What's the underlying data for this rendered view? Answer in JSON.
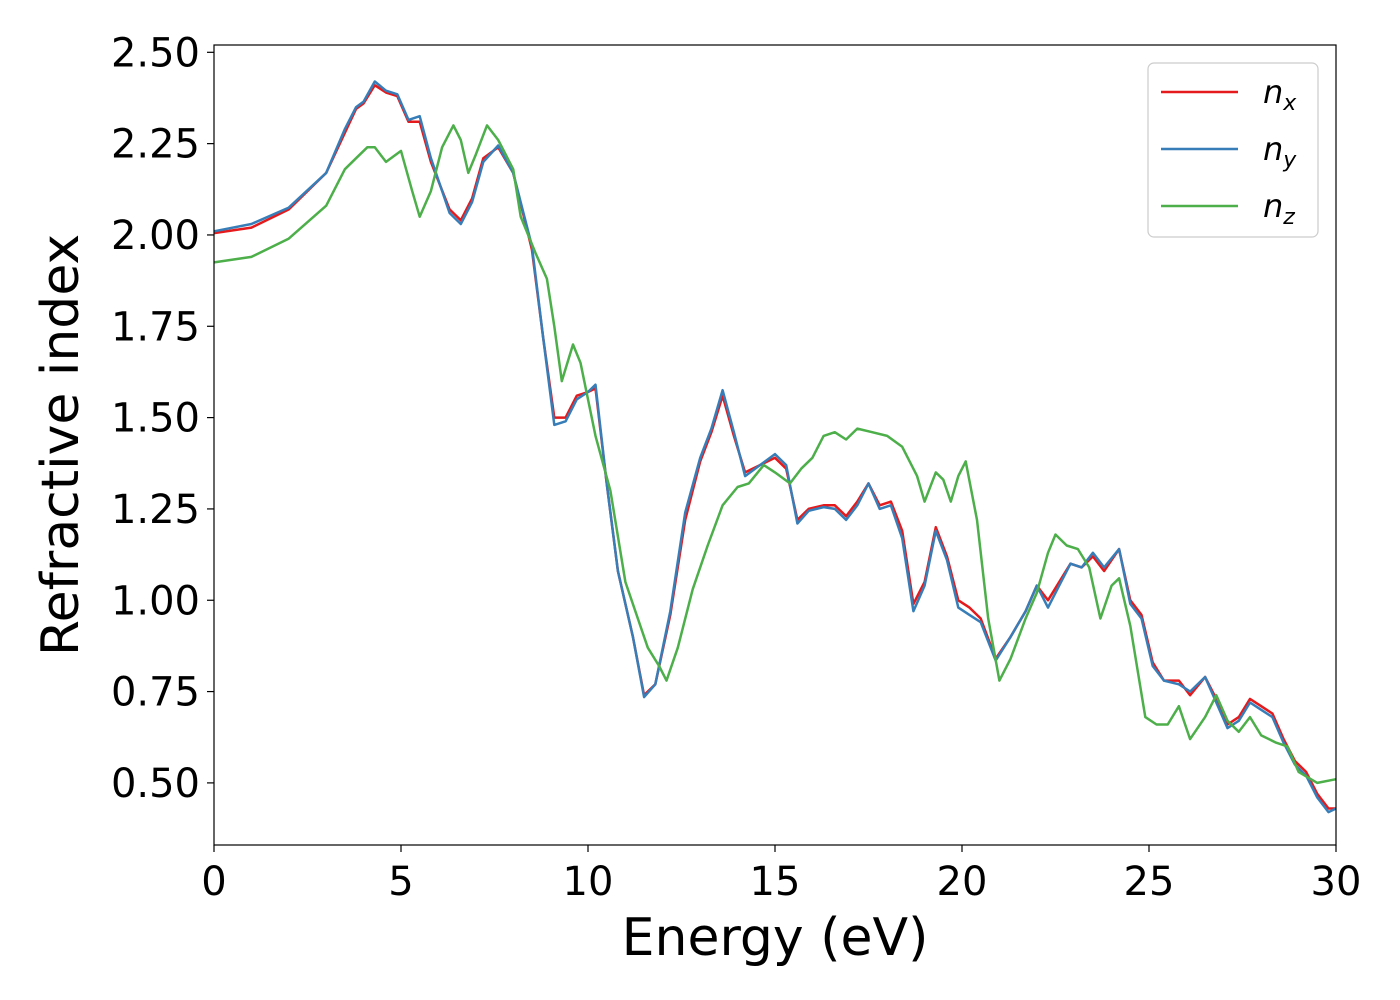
{
  "chart_data": {
    "type": "line",
    "title": "",
    "xlabel": "Energy (eV)",
    "ylabel": "Refractive index",
    "xlim": [
      0,
      30
    ],
    "ylim": [
      0.33,
      2.52
    ],
    "xticks": [
      0,
      5,
      10,
      15,
      20,
      25,
      30
    ],
    "yticks": [
      0.5,
      0.75,
      1.0,
      1.25,
      1.5,
      1.75,
      2.0,
      2.25,
      2.5
    ],
    "ytick_labels": [
      "0.50",
      "0.75",
      "1.00",
      "1.25",
      "1.50",
      "1.75",
      "2.00",
      "2.25",
      "2.50"
    ],
    "grid": false,
    "legend_position": "top-right",
    "series": [
      {
        "name": "x",
        "label_base": "n",
        "label_sub": "x",
        "color": "#e41a1c",
        "points": [
          [
            0,
            2.005
          ],
          [
            1,
            2.02
          ],
          [
            2,
            2.07
          ],
          [
            3,
            2.17
          ],
          [
            3.5,
            2.28
          ],
          [
            3.8,
            2.345
          ],
          [
            4.0,
            2.36
          ],
          [
            4.3,
            2.41
          ],
          [
            4.6,
            2.39
          ],
          [
            4.9,
            2.38
          ],
          [
            5.2,
            2.31
          ],
          [
            5.5,
            2.31
          ],
          [
            5.8,
            2.2
          ],
          [
            6.3,
            2.07
          ],
          [
            6.6,
            2.04
          ],
          [
            6.9,
            2.1
          ],
          [
            7.2,
            2.21
          ],
          [
            7.6,
            2.24
          ],
          [
            8.0,
            2.17
          ],
          [
            8.5,
            1.96
          ],
          [
            8.8,
            1.72
          ],
          [
            9.1,
            1.5
          ],
          [
            9.4,
            1.5
          ],
          [
            9.7,
            1.56
          ],
          [
            10.0,
            1.57
          ],
          [
            10.2,
            1.58
          ],
          [
            10.5,
            1.32
          ],
          [
            10.8,
            1.08
          ],
          [
            11.2,
            0.9
          ],
          [
            11.5,
            0.74
          ],
          [
            11.8,
            0.77
          ],
          [
            12.2,
            0.96
          ],
          [
            12.6,
            1.22
          ],
          [
            13.0,
            1.38
          ],
          [
            13.3,
            1.46
          ],
          [
            13.6,
            1.56
          ],
          [
            13.9,
            1.45
          ],
          [
            14.2,
            1.35
          ],
          [
            14.6,
            1.37
          ],
          [
            15.0,
            1.39
          ],
          [
            15.3,
            1.36
          ],
          [
            15.6,
            1.22
          ],
          [
            15.9,
            1.25
          ],
          [
            16.3,
            1.26
          ],
          [
            16.6,
            1.26
          ],
          [
            16.9,
            1.23
          ],
          [
            17.2,
            1.27
          ],
          [
            17.5,
            1.32
          ],
          [
            17.8,
            1.26
          ],
          [
            18.1,
            1.27
          ],
          [
            18.4,
            1.19
          ],
          [
            18.7,
            0.99
          ],
          [
            19.0,
            1.05
          ],
          [
            19.3,
            1.2
          ],
          [
            19.6,
            1.12
          ],
          [
            19.9,
            1.0
          ],
          [
            20.2,
            0.98
          ],
          [
            20.5,
            0.95
          ],
          [
            20.9,
            0.84
          ],
          [
            21.3,
            0.9
          ],
          [
            21.7,
            0.97
          ],
          [
            22.0,
            1.04
          ],
          [
            22.3,
            1.0
          ],
          [
            22.6,
            1.05
          ],
          [
            22.9,
            1.1
          ],
          [
            23.2,
            1.09
          ],
          [
            23.5,
            1.12
          ],
          [
            23.8,
            1.08
          ],
          [
            24.2,
            1.14
          ],
          [
            24.5,
            1.0
          ],
          [
            24.8,
            0.96
          ],
          [
            25.1,
            0.83
          ],
          [
            25.4,
            0.78
          ],
          [
            25.8,
            0.78
          ],
          [
            26.1,
            0.74
          ],
          [
            26.5,
            0.79
          ],
          [
            26.8,
            0.73
          ],
          [
            27.1,
            0.66
          ],
          [
            27.4,
            0.68
          ],
          [
            27.7,
            0.73
          ],
          [
            28.0,
            0.71
          ],
          [
            28.3,
            0.69
          ],
          [
            28.6,
            0.62
          ],
          [
            28.9,
            0.56
          ],
          [
            29.2,
            0.53
          ],
          [
            29.5,
            0.47
          ],
          [
            29.8,
            0.43
          ],
          [
            30.0,
            0.43
          ]
        ]
      },
      {
        "name": "y",
        "label_base": "n",
        "label_sub": "y",
        "color": "#377eb8",
        "points": [
          [
            0,
            2.01
          ],
          [
            1,
            2.03
          ],
          [
            2,
            2.075
          ],
          [
            3,
            2.17
          ],
          [
            3.5,
            2.29
          ],
          [
            3.8,
            2.35
          ],
          [
            4.0,
            2.365
          ],
          [
            4.3,
            2.42
          ],
          [
            4.6,
            2.395
          ],
          [
            4.9,
            2.385
          ],
          [
            5.2,
            2.315
          ],
          [
            5.5,
            2.325
          ],
          [
            5.8,
            2.21
          ],
          [
            6.3,
            2.06
          ],
          [
            6.6,
            2.03
          ],
          [
            6.9,
            2.09
          ],
          [
            7.2,
            2.2
          ],
          [
            7.6,
            2.245
          ],
          [
            8.0,
            2.17
          ],
          [
            8.5,
            1.97
          ],
          [
            8.8,
            1.72
          ],
          [
            9.1,
            1.48
          ],
          [
            9.4,
            1.49
          ],
          [
            9.7,
            1.55
          ],
          [
            10.0,
            1.57
          ],
          [
            10.2,
            1.59
          ],
          [
            10.5,
            1.32
          ],
          [
            10.8,
            1.08
          ],
          [
            11.2,
            0.9
          ],
          [
            11.5,
            0.735
          ],
          [
            11.8,
            0.77
          ],
          [
            12.2,
            0.97
          ],
          [
            12.6,
            1.24
          ],
          [
            13.0,
            1.39
          ],
          [
            13.3,
            1.47
          ],
          [
            13.6,
            1.575
          ],
          [
            13.9,
            1.46
          ],
          [
            14.2,
            1.34
          ],
          [
            14.6,
            1.37
          ],
          [
            15.0,
            1.4
          ],
          [
            15.3,
            1.37
          ],
          [
            15.6,
            1.21
          ],
          [
            15.9,
            1.245
          ],
          [
            16.3,
            1.255
          ],
          [
            16.6,
            1.25
          ],
          [
            16.9,
            1.22
          ],
          [
            17.2,
            1.26
          ],
          [
            17.5,
            1.32
          ],
          [
            17.8,
            1.25
          ],
          [
            18.1,
            1.26
          ],
          [
            18.4,
            1.17
          ],
          [
            18.7,
            0.97
          ],
          [
            19.0,
            1.04
          ],
          [
            19.3,
            1.19
          ],
          [
            19.6,
            1.11
          ],
          [
            19.9,
            0.98
          ],
          [
            20.2,
            0.96
          ],
          [
            20.5,
            0.94
          ],
          [
            20.9,
            0.835
          ],
          [
            21.3,
            0.9
          ],
          [
            21.7,
            0.97
          ],
          [
            22.0,
            1.04
          ],
          [
            22.3,
            0.98
          ],
          [
            22.6,
            1.04
          ],
          [
            22.9,
            1.1
          ],
          [
            23.2,
            1.09
          ],
          [
            23.5,
            1.13
          ],
          [
            23.8,
            1.09
          ],
          [
            24.2,
            1.14
          ],
          [
            24.5,
            0.99
          ],
          [
            24.8,
            0.95
          ],
          [
            25.1,
            0.82
          ],
          [
            25.4,
            0.78
          ],
          [
            25.8,
            0.77
          ],
          [
            26.1,
            0.75
          ],
          [
            26.5,
            0.79
          ],
          [
            26.8,
            0.72
          ],
          [
            27.1,
            0.65
          ],
          [
            27.4,
            0.67
          ],
          [
            27.7,
            0.72
          ],
          [
            28.0,
            0.7
          ],
          [
            28.3,
            0.68
          ],
          [
            28.6,
            0.61
          ],
          [
            28.9,
            0.55
          ],
          [
            29.2,
            0.52
          ],
          [
            29.5,
            0.46
          ],
          [
            29.8,
            0.42
          ],
          [
            30.0,
            0.43
          ]
        ]
      },
      {
        "name": "z",
        "label_base": "n",
        "label_sub": "z",
        "color": "#4daf4a",
        "points": [
          [
            0,
            1.925
          ],
          [
            1,
            1.94
          ],
          [
            2,
            1.99
          ],
          [
            3,
            2.08
          ],
          [
            3.5,
            2.18
          ],
          [
            3.8,
            2.21
          ],
          [
            4.1,
            2.24
          ],
          [
            4.3,
            2.24
          ],
          [
            4.6,
            2.2
          ],
          [
            5.0,
            2.23
          ],
          [
            5.3,
            2.12
          ],
          [
            5.5,
            2.05
          ],
          [
            5.8,
            2.12
          ],
          [
            6.1,
            2.24
          ],
          [
            6.4,
            2.3
          ],
          [
            6.6,
            2.26
          ],
          [
            6.8,
            2.17
          ],
          [
            7.0,
            2.22
          ],
          [
            7.3,
            2.3
          ],
          [
            7.6,
            2.26
          ],
          [
            8.0,
            2.18
          ],
          [
            8.2,
            2.05
          ],
          [
            8.6,
            1.95
          ],
          [
            8.9,
            1.88
          ],
          [
            9.1,
            1.75
          ],
          [
            9.3,
            1.6
          ],
          [
            9.6,
            1.7
          ],
          [
            9.8,
            1.65
          ],
          [
            10.2,
            1.45
          ],
          [
            10.6,
            1.3
          ],
          [
            11.0,
            1.05
          ],
          [
            11.3,
            0.96
          ],
          [
            11.6,
            0.87
          ],
          [
            11.9,
            0.82
          ],
          [
            12.1,
            0.78
          ],
          [
            12.4,
            0.87
          ],
          [
            12.8,
            1.03
          ],
          [
            13.2,
            1.15
          ],
          [
            13.6,
            1.26
          ],
          [
            14.0,
            1.31
          ],
          [
            14.3,
            1.32
          ],
          [
            14.7,
            1.37
          ],
          [
            15.0,
            1.35
          ],
          [
            15.4,
            1.32
          ],
          [
            15.7,
            1.36
          ],
          [
            16.0,
            1.39
          ],
          [
            16.3,
            1.45
          ],
          [
            16.6,
            1.46
          ],
          [
            16.9,
            1.44
          ],
          [
            17.2,
            1.47
          ],
          [
            17.6,
            1.46
          ],
          [
            18.0,
            1.45
          ],
          [
            18.4,
            1.42
          ],
          [
            18.8,
            1.34
          ],
          [
            19.0,
            1.27
          ],
          [
            19.3,
            1.35
          ],
          [
            19.5,
            1.33
          ],
          [
            19.7,
            1.27
          ],
          [
            19.9,
            1.34
          ],
          [
            20.1,
            1.38
          ],
          [
            20.4,
            1.22
          ],
          [
            20.7,
            0.95
          ],
          [
            21.0,
            0.78
          ],
          [
            21.3,
            0.84
          ],
          [
            21.7,
            0.95
          ],
          [
            22.0,
            1.02
          ],
          [
            22.3,
            1.13
          ],
          [
            22.5,
            1.18
          ],
          [
            22.8,
            1.15
          ],
          [
            23.1,
            1.14
          ],
          [
            23.4,
            1.09
          ],
          [
            23.7,
            0.95
          ],
          [
            24.0,
            1.04
          ],
          [
            24.2,
            1.06
          ],
          [
            24.5,
            0.93
          ],
          [
            24.9,
            0.68
          ],
          [
            25.2,
            0.66
          ],
          [
            25.5,
            0.66
          ],
          [
            25.8,
            0.71
          ],
          [
            26.1,
            0.62
          ],
          [
            26.5,
            0.68
          ],
          [
            26.8,
            0.74
          ],
          [
            27.1,
            0.67
          ],
          [
            27.4,
            0.64
          ],
          [
            27.7,
            0.68
          ],
          [
            28.0,
            0.63
          ],
          [
            28.4,
            0.61
          ],
          [
            28.7,
            0.6
          ],
          [
            29.0,
            0.53
          ],
          [
            29.5,
            0.5
          ],
          [
            30.0,
            0.51
          ]
        ]
      }
    ]
  }
}
